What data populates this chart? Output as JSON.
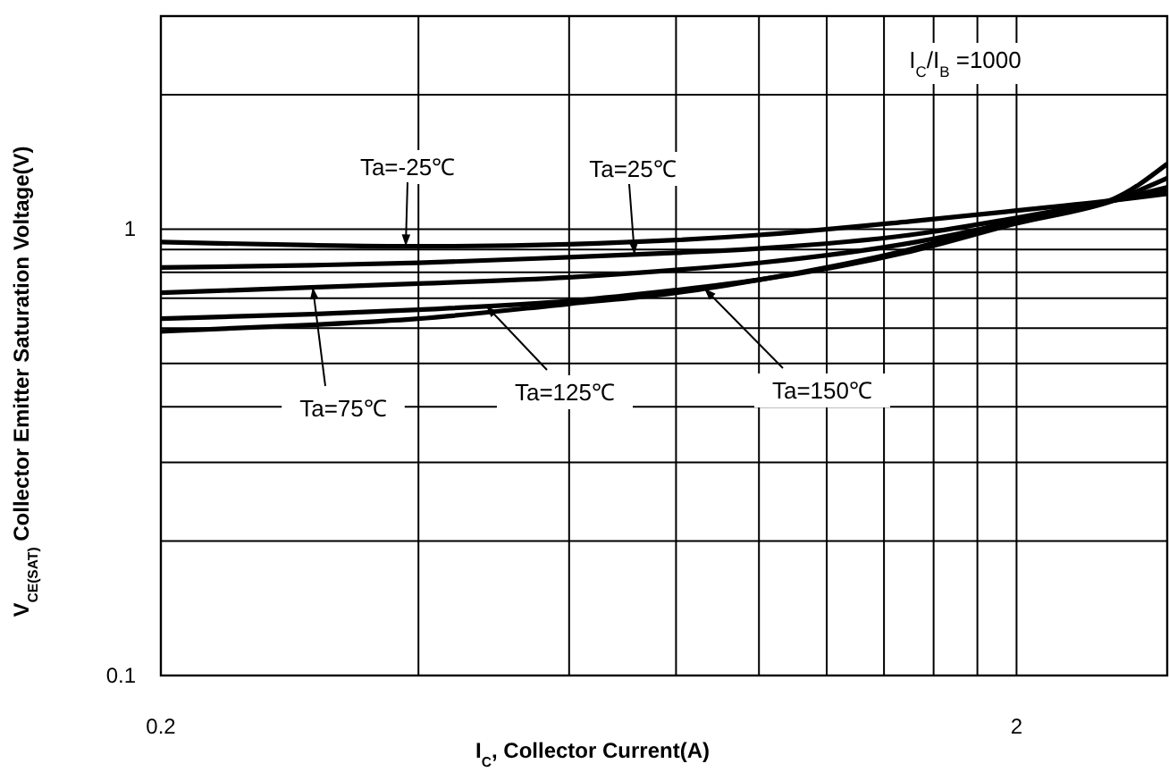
{
  "chart_data": {
    "type": "line",
    "xlabel": "I$_{C}$, Collector Current(A)",
    "ylabel": "V$_{CE(SAT)}$ Collector Emitter Saturation Voltage(V)",
    "x": [
      0.2,
      0.3,
      0.4,
      0.6,
      0.8,
      1.0,
      1.5,
      2,
      2.6,
      3
    ],
    "series": [
      {
        "name": "Ta=-25℃",
        "color": "#000000",
        "values": [
          0.935,
          0.92,
          0.915,
          0.925,
          0.945,
          0.97,
          1.04,
          1.1,
          1.16,
          1.2
        ]
      },
      {
        "name": "Ta=25℃",
        "color": "#000000",
        "values": [
          0.82,
          0.83,
          0.84,
          0.865,
          0.885,
          0.905,
          0.97,
          1.06,
          1.16,
          1.22
        ]
      },
      {
        "name": "Ta=75℃",
        "color": "#000000",
        "values": [
          0.72,
          0.74,
          0.755,
          0.78,
          0.81,
          0.84,
          0.93,
          1.04,
          1.16,
          1.24
        ]
      },
      {
        "name": "Ta=125℃",
        "color": "#000000",
        "values": [
          0.63,
          0.645,
          0.66,
          0.69,
          0.73,
          0.77,
          0.89,
          1.03,
          1.16,
          1.3
        ]
      },
      {
        "name": "Ta=150℃",
        "color": "#000000",
        "values": [
          0.59,
          0.61,
          0.63,
          0.68,
          0.72,
          0.77,
          0.9,
          1.05,
          1.17,
          1.4
        ]
      }
    ],
    "annotations": [
      "I$_{C}$/I$_{B}$ =1000"
    ],
    "xlim": [
      0.2,
      3
    ],
    "ylim": [
      0.1,
      3
    ],
    "xticks": [
      0.2,
      {
        "value": 0.4,
        "label": null
      },
      {
        "value": 0.6,
        "label": null
      },
      {
        "value": 0.8,
        "label": null
      },
      {
        "value": 1,
        "label": null
      },
      {
        "value": 1.2,
        "label": null
      },
      {
        "value": 1.4,
        "label": null
      },
      {
        "value": 1.6,
        "label": null
      },
      {
        "value": 1.8,
        "label": null
      },
      2
    ],
    "yticks": [
      0.1,
      {
        "value": 0.2,
        "label": null
      },
      {
        "value": 0.3,
        "label": null
      },
      {
        "value": 0.4,
        "label": null
      },
      {
        "value": 0.5,
        "label": null
      },
      {
        "value": 0.6,
        "label": null
      },
      {
        "value": 0.7,
        "label": null
      },
      {
        "value": 0.8,
        "label": null
      },
      {
        "value": 0.9,
        "label": null
      },
      1,
      {
        "value": 2,
        "label": null
      }
    ],
    "log": "xy",
    "grid": true,
    "marker": "none",
    "line_style": "solid"
  }
}
